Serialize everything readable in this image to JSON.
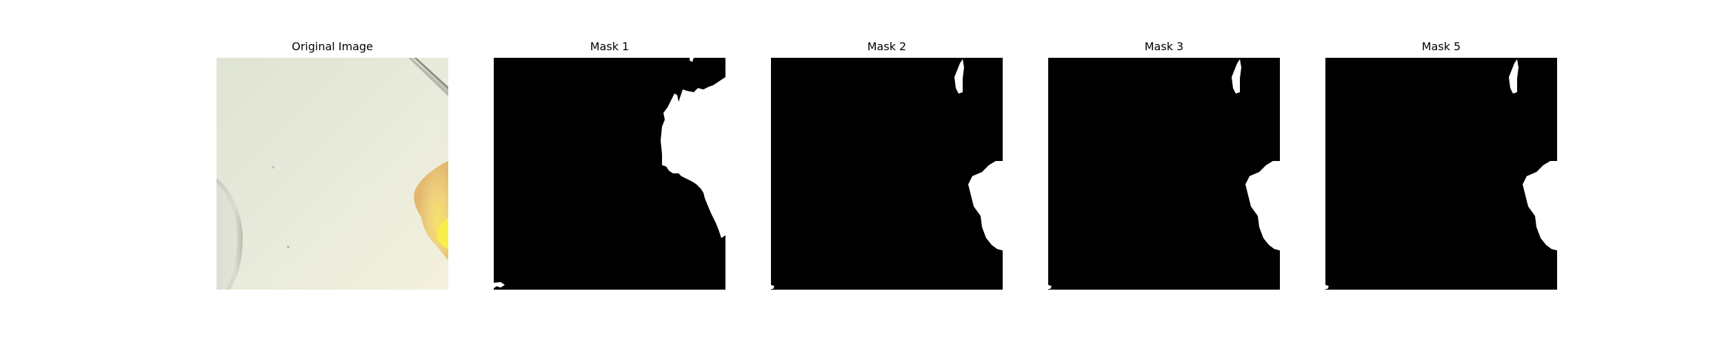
{
  "figure": {
    "panels": [
      {
        "title": "Original Image"
      },
      {
        "title": "Mask 1"
      },
      {
        "title": "Mask 2"
      },
      {
        "title": "Mask 3"
      },
      {
        "title": "Mask 5"
      }
    ]
  },
  "colors": {
    "mask_background": "#000000",
    "mask_foreground": "#ffffff",
    "photo_background": "#e6e8d6",
    "photo_object": "#f0d17a"
  }
}
